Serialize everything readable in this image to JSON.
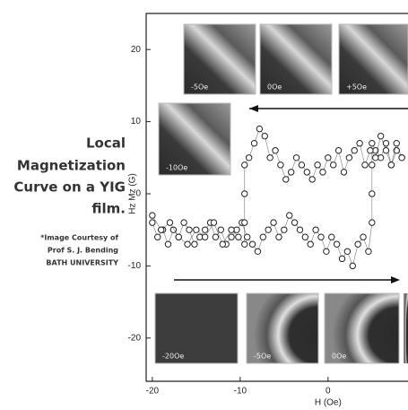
{
  "chart_data": {
    "type": "scatter",
    "xlabel": "H (Oe)",
    "ylabel": "Hz Mz (G)",
    "xlim": [
      -20.7,
      9.1
    ],
    "ylim": [
      -26,
      25
    ],
    "xticks": [
      -20,
      -10,
      0
    ],
    "yticks": [
      -20,
      -10,
      0,
      10,
      20
    ],
    "marker_fill": "#ffffff",
    "series": [
      {
        "color": "#222222",
        "x": [
          -20,
          -19.4,
          -18.8,
          -18.2,
          -17.6,
          -17,
          -16.4,
          -15.8,
          -15.2,
          -14.6,
          -14,
          -13.4,
          -12.8,
          -12.2,
          -11.6,
          -11,
          -10.4,
          -9.8,
          -9.2,
          -8.6,
          -8,
          -7.4,
          -6.8,
          -6.2,
          -5.6,
          -5,
          -4.4,
          -3.8,
          -3.2,
          -2.6,
          -2,
          -1.4,
          -0.8,
          -0.2,
          0.4,
          1,
          1.6,
          2.2,
          2.8,
          3.4,
          4,
          4.6,
          5,
          5,
          5,
          5,
          5.4,
          6,
          6.6,
          7.2,
          7.8,
          8.4
        ],
        "values": [
          -4,
          -6,
          -5,
          -7,
          -5,
          -6,
          -4,
          -5,
          -7,
          -6,
          -5,
          -4,
          -6,
          -5,
          -7,
          -6,
          -5,
          -4,
          -6,
          -7,
          -8,
          -6,
          -5,
          -4,
          -6,
          -5,
          -3,
          -4,
          -5,
          -6,
          -7,
          -5,
          -6,
          -8,
          -6,
          -7,
          -9,
          -8,
          -10,
          -7,
          -6,
          -8,
          -4,
          0,
          4,
          7,
          6,
          5,
          7,
          4,
          6,
          5
        ]
      },
      {
        "color": "#222222",
        "x": [
          8.4,
          7.8,
          7.2,
          6.6,
          6,
          5.4,
          4.8,
          4.2,
          3.6,
          3,
          2.4,
          1.8,
          1.2,
          0.6,
          0,
          -0.6,
          -1.2,
          -1.8,
          -2.4,
          -3,
          -3.6,
          -4.2,
          -4.8,
          -5.4,
          -6,
          -6.6,
          -7.2,
          -7.8,
          -8.4,
          -9,
          -9.5,
          -9.5,
          -9.5,
          -9.5,
          -10.2,
          -11,
          -12,
          -13,
          -14,
          -15,
          -16,
          -17,
          -18,
          -19,
          -20
        ],
        "values": [
          5,
          7,
          4,
          6,
          8,
          5,
          6,
          4,
          7,
          6,
          5,
          3,
          6,
          4,
          5,
          3,
          4,
          2,
          3,
          4,
          5,
          3,
          2,
          4,
          6,
          5,
          8,
          9,
          7,
          5,
          4,
          0,
          -4,
          -7,
          -6,
          -5,
          -7,
          -4,
          -6,
          -5,
          -7,
          -6,
          -4,
          -5,
          -3
        ]
      }
    ],
    "insets": [
      {
        "label": "-5Oe"
      },
      {
        "label": "0Oe"
      },
      {
        "label": "+5Oe"
      },
      {
        "label": "-10Oe"
      },
      {
        "label": "-20Oe"
      },
      {
        "label": "-5Oe"
      },
      {
        "label": "0Oe"
      }
    ],
    "side_text": [
      "Local",
      "Magnetization",
      "Curve on a YIG",
      "film."
    ],
    "credit": [
      "*Image Courtesy of",
      "Prof S. J. Bending",
      "BATH UNIVERSITY"
    ]
  }
}
